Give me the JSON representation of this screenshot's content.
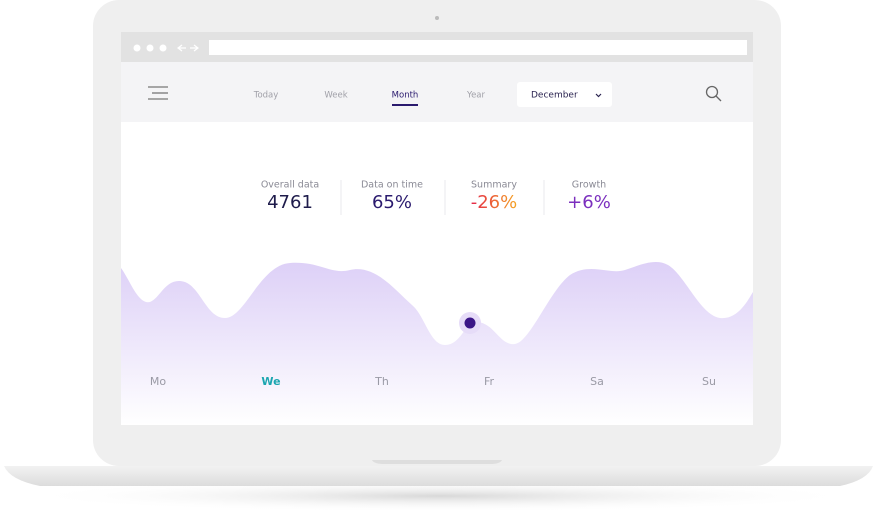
{
  "nav": {
    "tabs": [
      "Today",
      "Week",
      "Month",
      "Year"
    ],
    "dropdown": "December"
  },
  "stats": [
    {
      "label": "Overall data",
      "value": "4761"
    },
    {
      "label": "Data on time",
      "value": "65%"
    },
    {
      "label": "Summary",
      "value": "-26%"
    },
    {
      "label": "Growth",
      "value": "+6%"
    }
  ],
  "days": [
    "Mo",
    "We",
    "Th",
    "Fr",
    "Sa",
    "Su"
  ]
}
